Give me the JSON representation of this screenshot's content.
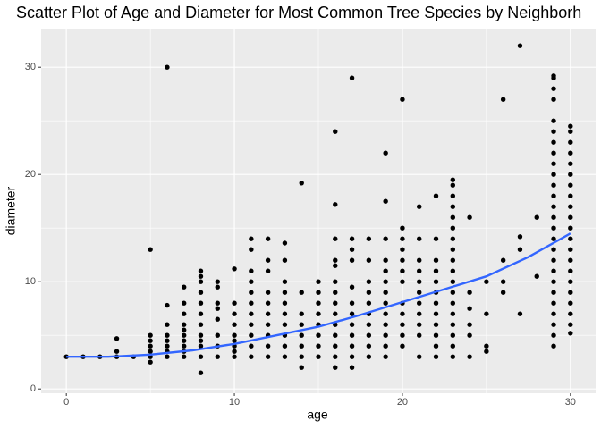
{
  "chart_data": {
    "type": "scatter",
    "title": "Scatter Plot of Age and Diameter for Most Common Tree Species by Neighborh",
    "x_label": "age",
    "y_label": "diameter",
    "xlim": [
      -1.5,
      31.5
    ],
    "ylim": [
      -0.4,
      33.6
    ],
    "xticks": [
      0,
      10,
      20,
      30
    ],
    "yticks": [
      0,
      10,
      20,
      30
    ],
    "minor_xticks": [
      5,
      15,
      25
    ],
    "minor_yticks": [
      5,
      15,
      25
    ],
    "grid": true,
    "points": {
      "color": "#000000",
      "x": [
        0,
        1,
        2,
        3,
        3,
        3,
        4,
        5,
        5,
        5,
        5,
        5,
        5,
        5,
        6,
        6,
        6,
        6,
        6,
        6,
        6,
        6,
        7,
        7,
        7,
        7,
        7,
        7,
        7,
        7,
        7,
        7,
        8,
        8,
        8,
        8,
        8,
        8,
        8,
        8,
        8,
        8,
        8,
        8,
        9,
        9,
        9,
        9,
        9,
        9,
        9,
        9,
        10,
        10,
        10,
        10,
        10,
        10,
        10,
        10,
        10,
        11,
        11,
        11,
        11,
        11,
        11,
        11,
        11,
        11,
        11,
        11,
        12,
        12,
        12,
        12,
        12,
        12,
        12,
        12,
        12,
        12,
        13,
        13,
        13,
        13,
        13,
        13,
        13,
        13,
        13,
        13,
        14,
        14,
        14,
        14,
        14,
        14,
        14,
        14,
        15,
        15,
        15,
        15,
        15,
        15,
        15,
        15,
        16,
        16,
        16,
        16,
        16,
        16,
        16,
        16,
        16,
        16,
        16,
        16,
        16,
        16,
        17,
        17,
        17,
        17,
        17,
        17,
        17,
        17,
        17,
        17,
        17,
        17,
        18,
        18,
        18,
        18,
        18,
        18,
        18,
        18,
        18,
        18,
        19,
        19,
        19,
        19,
        19,
        19,
        19,
        19,
        19,
        19,
        19,
        19,
        19,
        20,
        20,
        20,
        20,
        20,
        20,
        20,
        20,
        20,
        20,
        20,
        20,
        21,
        21,
        21,
        21,
        21,
        21,
        21,
        21,
        21,
        21,
        21,
        22,
        22,
        22,
        22,
        22,
        22,
        22,
        22,
        22,
        22,
        22,
        22,
        23,
        23,
        23,
        23,
        23,
        23,
        23,
        23,
        23,
        23,
        23,
        23,
        23,
        23,
        23,
        23,
        23,
        23,
        24,
        24,
        24,
        24,
        24,
        24,
        25,
        25,
        25,
        25,
        26,
        26,
        26,
        26,
        27,
        27,
        27,
        27,
        28,
        28,
        29,
        29,
        29,
        29,
        29,
        29,
        29,
        29,
        29,
        29,
        29,
        29,
        29,
        29,
        29,
        29,
        29,
        29,
        29,
        29,
        29,
        29,
        29,
        29,
        29,
        29,
        30,
        30,
        30,
        30,
        30,
        30,
        30,
        30,
        30,
        30,
        30,
        30,
        30,
        30,
        30,
        30,
        30,
        30,
        30,
        30,
        30
      ],
      "values": [
        3,
        3,
        3,
        3,
        3.5,
        4.7,
        3,
        13,
        5,
        4.5,
        4,
        3.5,
        3,
        2.5,
        30,
        7.8,
        6,
        5,
        4.5,
        4,
        3.5,
        3,
        9.5,
        8,
        7,
        6,
        5.5,
        5,
        4.5,
        4,
        3.5,
        3,
        11,
        10.5,
        10,
        9,
        8,
        7,
        6,
        5,
        4.5,
        4,
        3,
        1.5,
        10,
        9.5,
        8,
        7.5,
        6.5,
        5,
        4,
        3,
        11.2,
        8,
        7,
        6,
        5,
        4.5,
        4,
        3.5,
        3,
        14,
        13,
        11,
        10,
        9,
        8,
        7,
        6,
        5,
        4,
        3,
        14,
        12,
        11,
        9,
        8,
        7,
        6,
        5,
        4,
        3,
        13.6,
        12,
        10,
        9,
        8,
        7,
        6,
        5,
        4,
        3,
        19.2,
        9,
        7,
        6,
        5,
        4,
        3,
        2,
        10,
        9,
        8,
        7,
        6,
        5,
        4,
        3,
        24,
        17.2,
        14,
        12,
        11.5,
        10,
        9,
        8,
        7,
        6,
        5,
        4,
        3,
        2,
        29,
        14,
        13,
        12,
        9.5,
        8,
        7,
        6,
        5,
        4,
        3,
        2,
        14,
        12,
        10,
        9,
        8,
        7,
        6,
        5,
        4,
        3,
        22,
        17.5,
        14,
        12,
        11,
        10,
        9,
        8,
        7,
        6,
        5,
        4,
        3,
        27,
        15,
        14,
        13,
        12,
        11,
        10,
        8,
        7,
        6,
        5,
        4,
        17,
        14,
        12,
        11,
        10,
        9,
        8,
        7,
        6,
        5,
        3,
        18,
        14,
        12,
        11,
        10,
        9,
        8,
        7,
        6,
        5,
        4,
        3,
        19.5,
        19,
        18,
        17,
        16,
        15,
        14,
        13,
        12,
        11,
        10,
        9,
        8,
        7,
        6,
        5,
        4,
        3,
        16,
        9,
        7.5,
        6,
        5,
        3,
        10,
        7,
        4,
        3.5,
        27,
        12,
        10,
        9,
        32,
        14.2,
        13,
        7,
        16,
        10.5,
        29.2,
        29,
        28,
        27,
        25,
        24,
        23,
        22,
        21,
        20,
        19,
        18,
        17,
        16,
        15,
        14,
        13,
        12,
        11,
        10,
        9,
        8,
        7,
        6,
        5,
        4,
        24.5,
        24,
        23,
        22,
        21,
        20,
        19,
        18,
        17,
        16,
        15,
        14,
        13,
        12,
        11,
        10,
        9,
        8,
        7,
        6,
        5.2
      ]
    },
    "smooth": {
      "color": "#3366ff",
      "x": [
        0,
        2.5,
        5,
        7.5,
        10,
        12.5,
        15,
        17.5,
        20,
        22.5,
        25,
        27.5,
        30
      ],
      "values": [
        3.0,
        3.0,
        3.2,
        3.6,
        4.2,
        5.0,
        5.8,
        6.9,
        8.1,
        9.3,
        10.5,
        12.3,
        14.5
      ]
    }
  }
}
